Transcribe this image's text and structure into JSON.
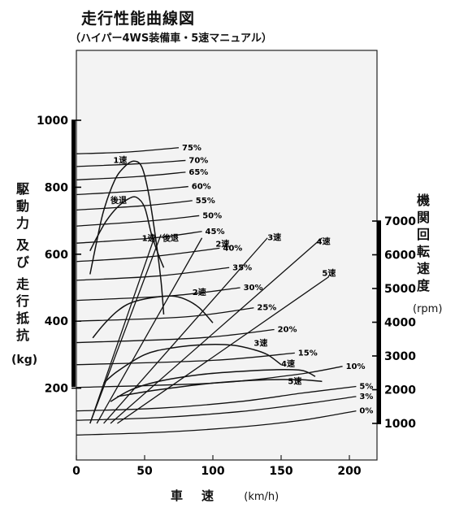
{
  "chart_data": {
    "type": "line",
    "title": "走行性能曲線図",
    "subtitle": "（ハイパー4WS装備車・5速マニュアル）",
    "xlabel": "車　速",
    "xunit": "(km/h)",
    "ylabel_left": [
      "駆",
      "動",
      "力",
      "及",
      "び",
      "走",
      "行",
      "抵",
      "抗"
    ],
    "ylabel_left_unit": "(kg)",
    "ylabel_right": [
      "機",
      "関",
      "回",
      "転",
      "速",
      "度"
    ],
    "ylabel_right_unit": "(rpm)",
    "xlim": [
      0,
      220
    ],
    "ylim": [
      0,
      1100
    ],
    "y2lim": [
      1000,
      7000
    ],
    "x_ticks": [
      "0",
      "50",
      "100",
      "150",
      "200"
    ],
    "x_tick_values": [
      0,
      50,
      100,
      150,
      200
    ],
    "y_ticks": [
      "200",
      "400",
      "600",
      "800",
      "1000"
    ],
    "y_tick_values": [
      200,
      400,
      600,
      800,
      1000
    ],
    "y2_ticks": [
      "1000",
      "2000",
      "3000",
      "4000",
      "5000",
      "6000",
      "7000"
    ],
    "y2_tick_values": [
      1000,
      2000,
      3000,
      4000,
      5000,
      6000,
      7000
    ],
    "resistance_curves": [
      {
        "label": "75%",
        "points": [
          [
            0,
            900
          ],
          [
            37,
            905
          ],
          [
            75,
            918
          ]
        ]
      },
      {
        "label": "70%",
        "points": [
          [
            0,
            862
          ],
          [
            45,
            870
          ],
          [
            80,
            880
          ]
        ]
      },
      {
        "label": "65%",
        "points": [
          [
            0,
            822
          ],
          [
            45,
            832
          ],
          [
            80,
            845
          ]
        ]
      },
      {
        "label": "60%",
        "points": [
          [
            0,
            778
          ],
          [
            50,
            790
          ],
          [
            82,
            802
          ]
        ]
      },
      {
        "label": "55%",
        "points": [
          [
            0,
            732
          ],
          [
            50,
            745
          ],
          [
            85,
            760
          ]
        ]
      },
      {
        "label": "50%",
        "points": [
          [
            0,
            684
          ],
          [
            55,
            700
          ],
          [
            90,
            715
          ]
        ]
      },
      {
        "label": "45%",
        "points": [
          [
            0,
            633
          ],
          [
            55,
            648
          ],
          [
            92,
            668
          ]
        ]
      },
      {
        "label": "40%",
        "points": [
          [
            0,
            578
          ],
          [
            55,
            593
          ],
          [
            105,
            618
          ]
        ]
      },
      {
        "label": "35%",
        "points": [
          [
            0,
            522
          ],
          [
            60,
            535
          ],
          [
            112,
            560
          ]
        ]
      },
      {
        "label": "30%",
        "points": [
          [
            0,
            462
          ],
          [
            70,
            476
          ],
          [
            120,
            500
          ]
        ]
      },
      {
        "label": "25%",
        "points": [
          [
            0,
            400
          ],
          [
            80,
            413
          ],
          [
            130,
            440
          ]
        ]
      },
      {
        "label": "20%",
        "points": [
          [
            0,
            336
          ],
          [
            90,
            350
          ],
          [
            145,
            375
          ]
        ]
      },
      {
        "label": "15%",
        "points": [
          [
            0,
            270
          ],
          [
            100,
            283
          ],
          [
            160,
            305
          ]
        ]
      },
      {
        "label": "10%",
        "points": [
          [
            0,
            202
          ],
          [
            100,
            215
          ],
          [
            160,
            240
          ],
          [
            195,
            265
          ]
        ]
      },
      {
        "label": "5%",
        "points": [
          [
            0,
            132
          ],
          [
            60,
            140
          ],
          [
            120,
            160
          ],
          [
            165,
            185
          ],
          [
            205,
            205
          ]
        ]
      },
      {
        "label": "3%",
        "points": [
          [
            0,
            104
          ],
          [
            60,
            112
          ],
          [
            120,
            130
          ],
          [
            165,
            152
          ],
          [
            205,
            175
          ]
        ]
      },
      {
        "label": "0%",
        "points": [
          [
            0,
            60
          ],
          [
            60,
            68
          ],
          [
            120,
            84
          ],
          [
            165,
            104
          ],
          [
            205,
            132
          ]
        ]
      }
    ],
    "traction_curves": [
      {
        "label": "1速",
        "points": [
          [
            10,
            540
          ],
          [
            15,
            640
          ],
          [
            20,
            730
          ],
          [
            28,
            820
          ],
          [
            35,
            860
          ],
          [
            42,
            878
          ],
          [
            48,
            860
          ],
          [
            53,
            780
          ],
          [
            58,
            650
          ],
          [
            62,
            520
          ],
          [
            64,
            420
          ]
        ]
      },
      {
        "label": "後退",
        "points": [
          [
            10,
            610
          ],
          [
            15,
            650
          ],
          [
            22,
            700
          ],
          [
            30,
            740
          ],
          [
            38,
            765
          ],
          [
            44,
            770
          ],
          [
            50,
            740
          ],
          [
            55,
            660
          ],
          [
            60,
            600
          ],
          [
            64,
            560
          ]
        ]
      },
      {
        "label": "2速",
        "points": [
          [
            12,
            350
          ],
          [
            20,
            390
          ],
          [
            30,
            430
          ],
          [
            40,
            455
          ],
          [
            55,
            470
          ],
          [
            70,
            475
          ],
          [
            80,
            465
          ],
          [
            90,
            440
          ],
          [
            100,
            395
          ]
        ]
      },
      {
        "label": "3速",
        "points": [
          [
            20,
            215
          ],
          [
            30,
            250
          ],
          [
            50,
            300
          ],
          [
            70,
            320
          ],
          [
            95,
            330
          ],
          [
            115,
            328
          ],
          [
            130,
            315
          ],
          [
            140,
            300
          ],
          [
            150,
            270
          ]
        ]
      },
      {
        "label": "4速",
        "points": [
          [
            25,
            160
          ],
          [
            40,
            195
          ],
          [
            60,
            220
          ],
          [
            90,
            240
          ],
          [
            120,
            250
          ],
          [
            145,
            255
          ],
          [
            165,
            253
          ],
          [
            175,
            235
          ]
        ]
      },
      {
        "label": "5速",
        "points": [
          [
            30,
            175
          ],
          [
            60,
            195
          ],
          [
            100,
            215
          ],
          [
            140,
            225
          ],
          [
            165,
            225
          ],
          [
            180,
            220
          ]
        ]
      }
    ],
    "rpm_lines": [
      {
        "label": "1速",
        "points": [
          [
            10,
            1000
          ],
          [
            57,
            6500
          ]
        ]
      },
      {
        "label": "後退",
        "points": [
          [
            10,
            1000
          ],
          [
            62,
            6600
          ]
        ]
      },
      {
        "label": "2速",
        "points": [
          [
            15,
            1000
          ],
          [
            92,
            6500
          ]
        ]
      },
      {
        "label": "3速",
        "points": [
          [
            20,
            1000
          ],
          [
            140,
            6500
          ]
        ]
      },
      {
        "label": "4速",
        "points": [
          [
            25,
            1000
          ],
          [
            180,
            6500
          ]
        ]
      },
      {
        "label": "5速",
        "points": [
          [
            30,
            1000
          ],
          [
            185,
            5350
          ]
        ]
      }
    ],
    "annotations": [
      {
        "text": "1速",
        "x": 27,
        "y": 872
      },
      {
        "text": "後退",
        "x": 25,
        "y": 752
      },
      {
        "text": "1速",
        "x": 48,
        "y": 640
      },
      {
        "text": "後退",
        "x": 63,
        "y": 640
      },
      {
        "text": "2速",
        "x": 102,
        "y": 622
      },
      {
        "text": "2速",
        "x": 85,
        "y": 478
      },
      {
        "text": "3速",
        "x": 140,
        "y": 642
      },
      {
        "text": "4速",
        "x": 176,
        "y": 630
      },
      {
        "text": "5速",
        "x": 180,
        "y": 535
      },
      {
        "text": "3速",
        "x": 130,
        "y": 327
      },
      {
        "text": "4速",
        "x": 150,
        "y": 265
      },
      {
        "text": "5速",
        "x": 155,
        "y": 212
      }
    ]
  }
}
